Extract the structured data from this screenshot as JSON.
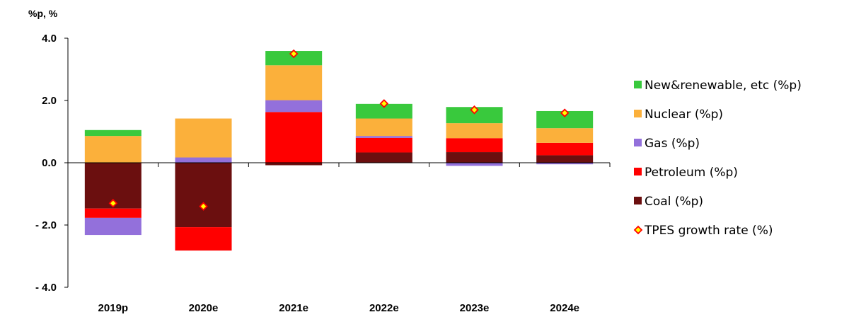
{
  "chart_data": {
    "type": "bar",
    "stacked": true,
    "unit_label": "%p, %",
    "categories": [
      "2019p",
      "2020e",
      "2021e",
      "2022e",
      "2023e",
      "2024e"
    ],
    "ylim": [
      -4.0,
      4.0
    ],
    "yticks": [
      4.0,
      2.0,
      0.0,
      -2.0,
      -4.0
    ],
    "ytick_labels": [
      "4.0",
      "2.0",
      "0.0",
      "- 2.0",
      "- 4.0"
    ],
    "grid": false,
    "legend_position": "right",
    "series": [
      {
        "name": "Coal (%p)",
        "color": "#6b0f0f",
        "values": [
          -1.47,
          -2.07,
          -0.08,
          0.33,
          0.34,
          0.24
        ]
      },
      {
        "name": "Petroleum (%p)",
        "color": "#ff0000",
        "values": [
          -0.3,
          -0.75,
          1.63,
          0.47,
          0.45,
          0.4
        ]
      },
      {
        "name": "Gas (%p)",
        "color": "#9370db",
        "values": [
          -0.55,
          0.17,
          0.38,
          0.06,
          -0.1,
          -0.05
        ]
      },
      {
        "name": "Nuclear (%p)",
        "color": "#fbb03b",
        "values": [
          0.86,
          1.25,
          1.12,
          0.56,
          0.48,
          0.47
        ]
      },
      {
        "name": "New&renewable, etc (%p)",
        "color": "#39c93d",
        "values": [
          0.19,
          0.0,
          0.46,
          0.47,
          0.52,
          0.55
        ]
      }
    ],
    "line_series": {
      "name": "TPES growth rate (%)",
      "marker_fill": "#ffff00",
      "marker_stroke": "#ff0000",
      "values": [
        -1.3,
        -1.4,
        3.5,
        1.9,
        1.7,
        1.6
      ]
    },
    "legend_order": [
      "New&renewable, etc (%p)",
      "Nuclear (%p)",
      "Gas (%p)",
      "Petroleum (%p)",
      "Coal (%p)",
      "TPES growth rate (%)"
    ]
  }
}
